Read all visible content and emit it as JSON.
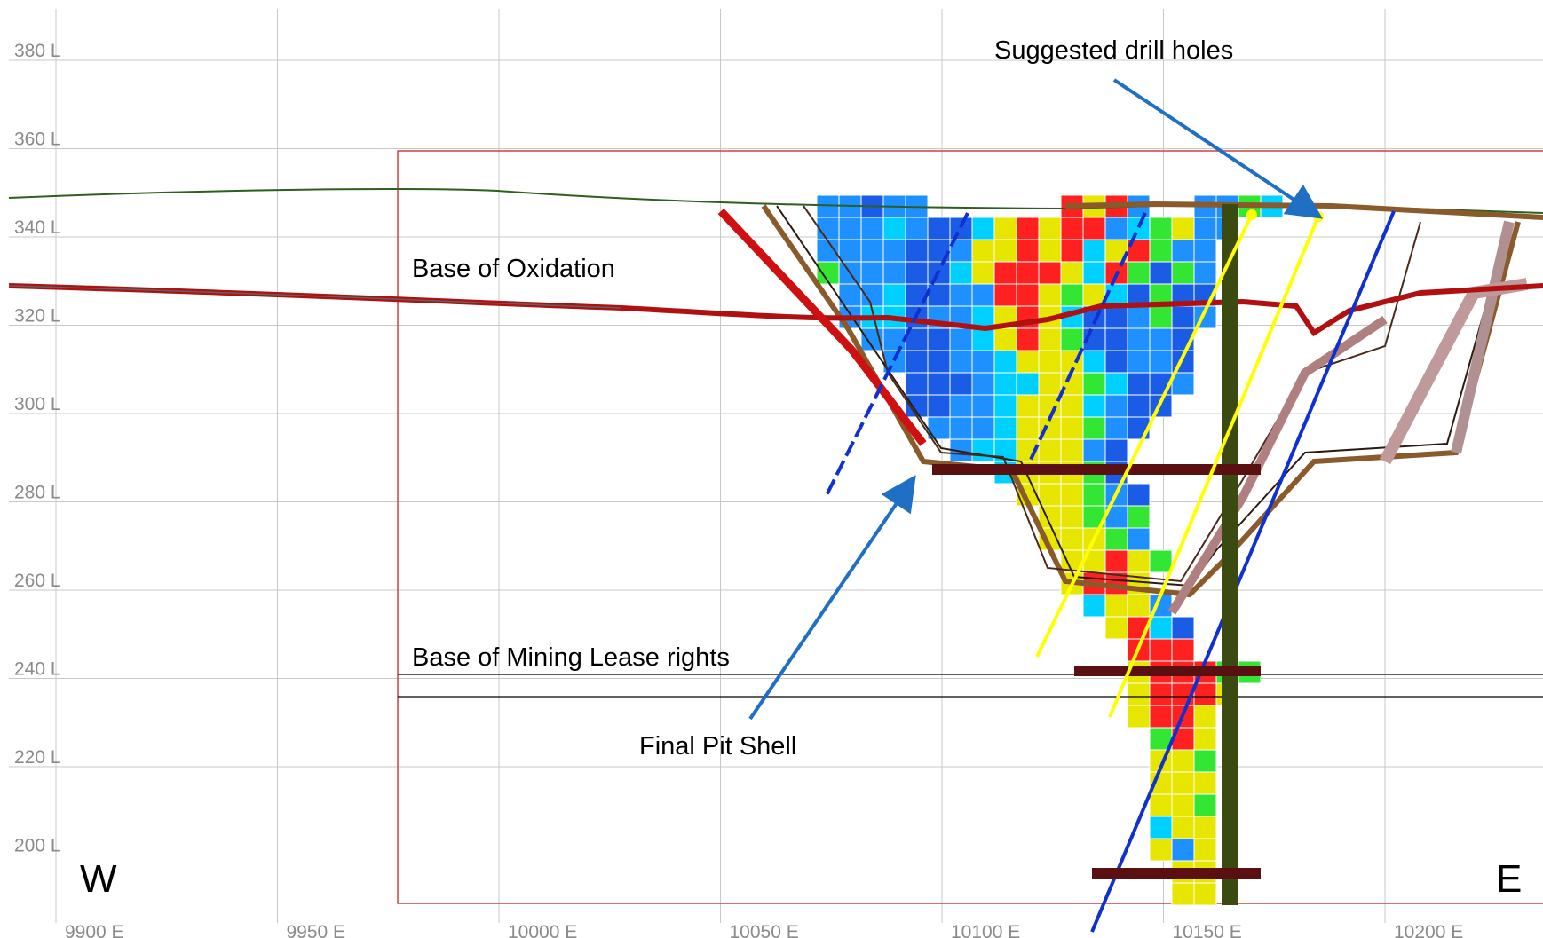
{
  "view": {
    "y_levels": [
      "380 L",
      "360 L",
      "340 L",
      "320 L",
      "300 L",
      "280 L",
      "260 L",
      "240 L",
      "220 L",
      "200 L"
    ],
    "x_eastings": [
      "9900 E",
      "9950 E",
      "10000 E",
      "10050 E",
      "10100 E",
      "10150 E",
      "10200 E"
    ],
    "compass_west": "W",
    "compass_east": "E"
  },
  "annotations": {
    "suggested_drill_holes": "Suggested drill holes",
    "base_of_oxidation": "Base of Oxidation",
    "base_of_mining_lease": "Base of Mining Lease rights",
    "final_pit_shell": "Final Pit Shell"
  },
  "colors": {
    "grid": "#c8c8c8",
    "boundary": "#d04040",
    "arrow": "#1f6fc4",
    "drill_hole_suggested": "#ffff00",
    "existing_hole": "#1030d0",
    "oxidation": "#b01010",
    "pit_shell": "#8a5a2a",
    "block_grades": [
      "#1a5ce6",
      "#1e90ff",
      "#00d0ff",
      "#33e633",
      "#e6e600",
      "#ff2020"
    ]
  }
}
